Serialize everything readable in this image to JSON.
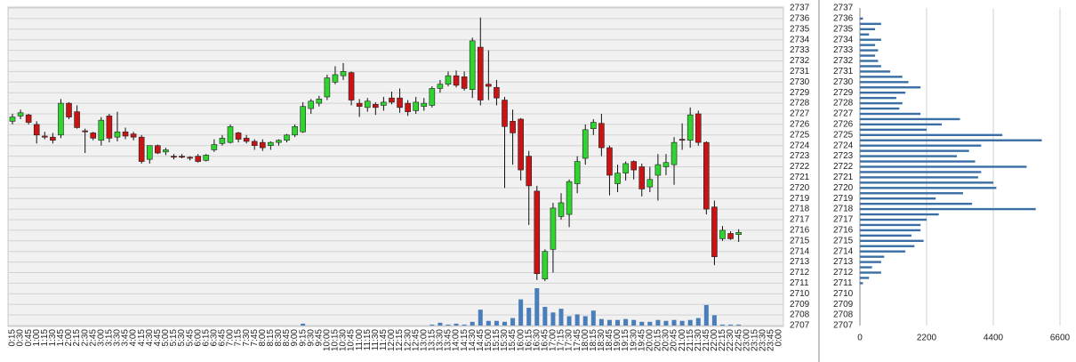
{
  "chart_data": [
    {
      "type": "candlestick",
      "categories": [
        "0:15",
        "0:30",
        "0:45",
        "1:00",
        "1:15",
        "1:30",
        "1:45",
        "2:00",
        "2:15",
        "2:30",
        "2:45",
        "3:00",
        "3:15",
        "3:30",
        "3:45",
        "4:00",
        "4:15",
        "4:30",
        "4:45",
        "5:00",
        "5:15",
        "5:30",
        "5:45",
        "6:00",
        "6:15",
        "6:30",
        "6:45",
        "7:00",
        "7:15",
        "7:30",
        "7:45",
        "8:00",
        "8:15",
        "8:30",
        "8:45",
        "9:00",
        "9:15",
        "9:30",
        "9:45",
        "10:00",
        "10:15",
        "10:30",
        "10:45",
        "11:00",
        "11:15",
        "11:30",
        "11:45",
        "12:00",
        "12:15",
        "12:30",
        "12:45",
        "13:00",
        "13:15",
        "13:30",
        "13:45",
        "14:00",
        "14:15",
        "14:30",
        "14:45",
        "15:00",
        "15:15",
        "15:30",
        "15:45",
        "16:00",
        "16:15",
        "16:30",
        "16:45",
        "17:00",
        "17:15",
        "17:30",
        "17:45",
        "18:00",
        "18:15",
        "18:30",
        "18:45",
        "19:00",
        "19:15",
        "19:30",
        "19:45",
        "20:00",
        "20:15",
        "20:30",
        "20:45",
        "21:00",
        "21:15",
        "21:30",
        "21:45",
        "22:00",
        "22:15",
        "22:30",
        "22:45",
        "23:00",
        "23:15",
        "23:30",
        "23:45",
        "0:00"
      ],
      "open": [
        2726.3,
        2726.8,
        2726.9,
        2726,
        2724.9,
        2724.8,
        2725,
        2728,
        2727.2,
        2725.4,
        2725.2,
        2724.5,
        2726.8,
        2724.8,
        2725.3,
        2725.1,
        2724.8,
        2722.7,
        2724,
        2723.4,
        2723,
        2723,
        2722.9,
        2723,
        2722.6,
        2723.6,
        2724.2,
        2724.3,
        2725.2,
        2724.7,
        2724.4,
        2724.3,
        2724,
        2724.3,
        2724.5,
        2725,
        2725.3,
        2727.5,
        2728,
        2728.6,
        2730,
        2730.6,
        2730.9,
        2728,
        2727.6,
        2727.9,
        2727.8,
        2728.5,
        2728.5,
        2728,
        2727.3,
        2727.7,
        2727.8,
        2729.4,
        2729.8,
        2730.6,
        2730.5,
        2729.3,
        2733.3,
        2729.8,
        2729.5,
        2728.3,
        2726.3,
        2726.5,
        2723,
        2719.7,
        2711.4,
        2714.2,
        2717.3,
        2717.5,
        2720.4,
        2722.8,
        2725.6,
        2726.1,
        2723.8,
        2720.4,
        2721.4,
        2722.5,
        2722,
        2720.1,
        2721.2,
        2722,
        2722.2,
        2724.6,
        2724.5,
        2727,
        2724.3,
        2718.2,
        2715.2,
        2715.7,
        2715.6,
        null,
        null,
        null,
        null,
        null
      ],
      "high": [
        2727,
        2727.4,
        2727,
        2726.3,
        2725.3,
        2725.2,
        2728.4,
        2728.1,
        2727.8,
        2725.6,
        2725.3,
        2726.7,
        2727,
        2727.2,
        2725.7,
        2725.3,
        2725,
        2724,
        2724.1,
        2723.8,
        2723.2,
        2723.2,
        2723,
        2723.2,
        2723.2,
        2724.6,
        2725,
        2726,
        2725.3,
        2725,
        2724.6,
        2724.6,
        2724.4,
        2724.6,
        2725.1,
        2726,
        2728.1,
        2728.4,
        2728.7,
        2730.7,
        2731.5,
        2731.8,
        2731,
        2728.4,
        2728.5,
        2728.1,
        2728.6,
        2729.1,
        2729.4,
        2728.3,
        2728.6,
        2728.5,
        2729.6,
        2730.2,
        2731,
        2731.1,
        2731,
        2734.2,
        2736.1,
        2733,
        2730.2,
        2728.6,
        2727.4,
        2726.6,
        2723.5,
        2720.2,
        2714.2,
        2718.6,
        2719.5,
        2720.8,
        2723,
        2726,
        2726.5,
        2727,
        2724,
        2722.2,
        2722.5,
        2722.6,
        2722.3,
        2722,
        2723.2,
        2723.2,
        2724.8,
        2726.1,
        2727.6,
        2727.3,
        2724.4,
        2718.8,
        2716.4,
        2715.9,
        2716.1,
        null,
        null,
        null,
        null,
        null
      ],
      "low": [
        2726,
        2726.5,
        2726,
        2724.2,
        2724.6,
        2724.2,
        2724.7,
        2726.5,
        2725.6,
        2723.3,
        2724.5,
        2724,
        2724.3,
        2724.4,
        2724.6,
        2724.5,
        2722.3,
        2722.3,
        2723.2,
        2723.1,
        2722.7,
        2722.8,
        2722.6,
        2722.4,
        2722.5,
        2723.4,
        2724,
        2724.2,
        2724.3,
        2724.2,
        2723.6,
        2723.5,
        2723.6,
        2724,
        2724.3,
        2724.8,
        2725.2,
        2727,
        2727.7,
        2728.3,
        2729.8,
        2730.2,
        2727.8,
        2726.7,
        2727.2,
        2726.9,
        2727.3,
        2727.9,
        2727.1,
        2726.8,
        2727,
        2727.3,
        2727.6,
        2729,
        2729.6,
        2729.5,
        2729.2,
        2728.5,
        2727.8,
        2728.3,
        2727.8,
        2720,
        2722.2,
        2720.7,
        2716.5,
        2711.3,
        2711.2,
        2712,
        2717,
        2716.3,
        2719.5,
        2722.2,
        2725,
        2723,
        2719.3,
        2719.6,
        2720.7,
        2720.8,
        2719.2,
        2719.6,
        2718.8,
        2721.2,
        2720.3,
        2723.6,
        2723.8,
        2724,
        2717.5,
        2712.7,
        2715,
        2715.1,
        2714.9,
        null,
        null,
        null,
        null,
        null
      ],
      "close": [
        2726.7,
        2727.1,
        2726.2,
        2725,
        2724.8,
        2724.5,
        2728,
        2726.7,
        2725.7,
        2725.3,
        2724.7,
        2726.4,
        2724.7,
        2725.3,
        2724.9,
        2724.8,
        2722.5,
        2724,
        2723.3,
        2723.6,
        2722.9,
        2722.9,
        2722.8,
        2722.5,
        2723.1,
        2724.1,
        2724.7,
        2725.8,
        2724.6,
        2724.4,
        2724,
        2723.8,
        2724.3,
        2724.5,
        2725,
        2725.8,
        2727.7,
        2728.2,
        2728.4,
        2730.4,
        2730.7,
        2731,
        2728.3,
        2727.7,
        2728.2,
        2727.6,
        2728.1,
        2728.1,
        2727.6,
        2727.2,
        2728.1,
        2728,
        2729.4,
        2729.8,
        2730.6,
        2729.7,
        2729.4,
        2733.9,
        2728.3,
        2729.6,
        2728.5,
        2725.8,
        2725.2,
        2721.7,
        2720.2,
        2711.9,
        2714,
        2718.1,
        2718.6,
        2720.6,
        2722.5,
        2725.5,
        2726.2,
        2723.8,
        2721.2,
        2721.4,
        2722.3,
        2721.7,
        2719.9,
        2720.8,
        2722.2,
        2722.4,
        2724.3,
        2724.5,
        2726.9,
        2724.3,
        2718,
        2713.5,
        2716,
        2715.2,
        2715.8,
        null,
        null,
        null,
        null,
        null
      ],
      "volume": [
        0,
        0,
        0,
        0,
        0,
        0,
        0,
        0,
        0,
        0,
        0,
        0,
        0,
        0,
        0,
        0,
        0,
        0,
        0,
        0,
        0,
        0,
        0,
        0,
        0,
        0,
        0,
        0,
        0,
        0,
        0,
        0,
        0,
        0,
        0,
        0,
        2,
        0,
        0,
        0,
        0,
        0,
        0,
        0,
        0,
        0,
        0,
        0,
        0,
        0,
        0,
        0,
        1,
        3,
        1,
        2,
        1,
        4,
        17,
        5,
        5,
        4,
        8,
        28,
        19,
        40,
        20,
        14,
        18,
        10,
        12,
        10,
        16,
        7,
        6,
        6,
        7,
        6,
        4,
        4,
        6,
        5,
        6,
        5,
        6,
        8,
        22,
        11,
        1,
        1,
        1,
        null,
        null,
        null,
        null,
        null
      ],
      "ylim": [
        2707,
        2737
      ],
      "yticks": [
        2707,
        2708,
        2709,
        2710,
        2711,
        2712,
        2713,
        2714,
        2715,
        2716,
        2717,
        2718,
        2719,
        2720,
        2721,
        2722,
        2723,
        2724,
        2725,
        2726,
        2727,
        2728,
        2729,
        2730,
        2731,
        2732,
        2733,
        2734,
        2735,
        2736,
        2737
      ],
      "grid": true,
      "up_color": "#2fd42f",
      "down_color": "#c81414",
      "volume_color": "#4a7ebb"
    },
    {
      "type": "bar",
      "orientation": "horizontal",
      "y": [
        2736,
        2735.5,
        2735,
        2734.5,
        2734,
        2733.5,
        2733,
        2732.5,
        2732,
        2731.5,
        2731,
        2730.5,
        2730,
        2729.5,
        2729,
        2728.5,
        2728,
        2727.5,
        2727,
        2726.5,
        2726,
        2725.5,
        2725,
        2724.5,
        2724,
        2723.5,
        2723,
        2722.5,
        2722,
        2721.5,
        2721,
        2720.5,
        2720,
        2719.5,
        2719,
        2718.5,
        2718,
        2717.5,
        2717,
        2716.5,
        2716,
        2715.5,
        2715,
        2714.5,
        2714,
        2713.5,
        2713,
        2712.5,
        2712,
        2711.5,
        2711
      ],
      "values": [
        100,
        700,
        500,
        300,
        700,
        500,
        600,
        500,
        600,
        700,
        1000,
        1400,
        1600,
        2000,
        1500,
        1200,
        1400,
        1300,
        2000,
        3300,
        2700,
        2200,
        4700,
        6000,
        4000,
        3600,
        3200,
        3800,
        5500,
        4000,
        3900,
        4400,
        4500,
        3400,
        2500,
        3700,
        5800,
        2600,
        2200,
        2000,
        2000,
        1700,
        2100,
        1800,
        1500,
        800,
        700,
        400,
        700,
        300,
        100
      ],
      "xlim": [
        0,
        6600
      ],
      "xticks": [
        0,
        2200,
        4400,
        6600
      ],
      "ylim": [
        2707,
        2737
      ],
      "yticks": [
        2707,
        2708,
        2709,
        2710,
        2711,
        2712,
        2713,
        2714,
        2715,
        2716,
        2717,
        2718,
        2719,
        2720,
        2721,
        2722,
        2723,
        2724,
        2725,
        2726,
        2727,
        2728,
        2729,
        2730,
        2731,
        2732,
        2733,
        2734,
        2735,
        2736,
        2737
      ],
      "grid": true,
      "color": "#3a6ea5"
    }
  ]
}
